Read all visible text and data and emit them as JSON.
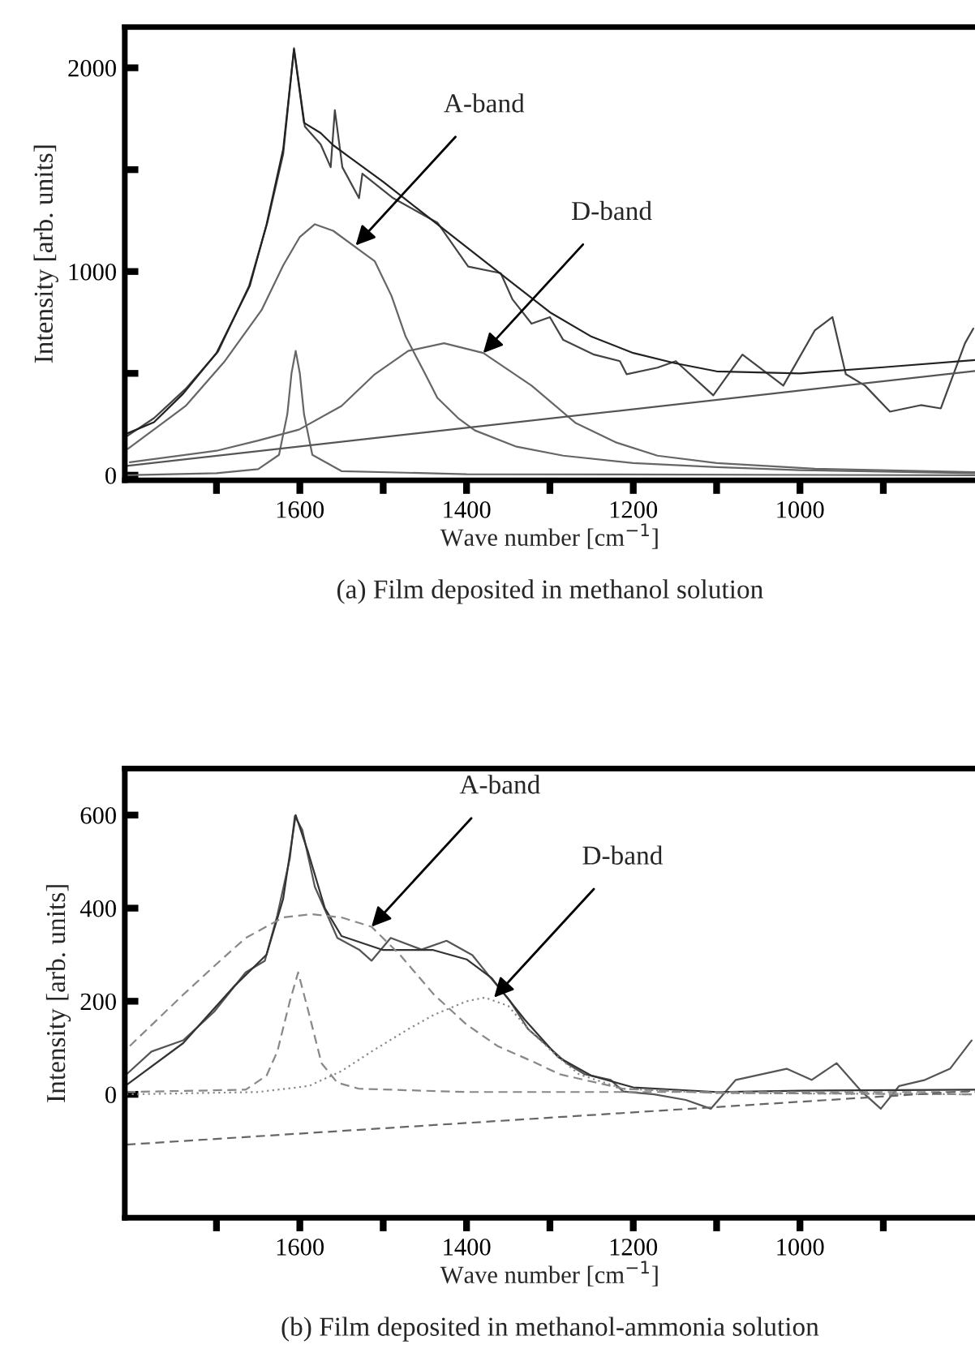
{
  "chart_data": [
    {
      "type": "line",
      "title": "(a) Film deposited in methanol solution",
      "xlabel": "Wave number [cm$^{−1}$]",
      "ylabel": "Intensity [arb. units]",
      "xlim": [
        1810,
        790
      ],
      "ylim": [
        -25,
        2200
      ],
      "xticks": [
        {
          "value": 1700,
          "label": null
        },
        1600,
        {
          "value": 1500,
          "label": null
        },
        1400,
        {
          "value": 1300,
          "label": null
        },
        1200,
        {
          "value": 1100,
          "label": null
        },
        1000,
        {
          "value": 900,
          "label": null
        }
      ],
      "yticks": [
        0,
        {
          "value": 500,
          "label": null
        },
        1000,
        {
          "value": 1500,
          "label": null
        },
        2000
      ],
      "grid": false,
      "legend": false,
      "annotations": [
        {
          "text": "A-band",
          "x": 1533,
          "y": 1128
        },
        {
          "text": "D-band",
          "x": 1380,
          "y": 600
        }
      ],
      "series": [
        {
          "color": "#444444",
          "line_style": "solid",
          "x": [
            1808,
            1775,
            1737,
            1698,
            1661,
            1639,
            1620,
            1607,
            1594,
            1575,
            1563,
            1558,
            1549,
            1529,
            1525,
            1488,
            1435,
            1398,
            1359,
            1345,
            1322,
            1300,
            1284,
            1247,
            1216,
            1208,
            1171,
            1149,
            1104,
            1069,
            1020,
            982,
            961,
            945,
            922,
            892,
            855,
            831,
            802,
            792
          ],
          "values": [
            190,
            280,
            424,
            608,
            928,
            1240,
            1576,
            2096,
            1712,
            1624,
            1512,
            1792,
            1512,
            1360,
            1480,
            1360,
            1240,
            1024,
            992,
            864,
            744,
            776,
            664,
            592,
            560,
            496,
            528,
            560,
            392,
            592,
            440,
            712,
            776,
            496,
            440,
            312,
            344,
            328,
            648,
            720
          ]
        },
        {
          "color": "#222222",
          "line_style": "solid",
          "x": [
            1810,
            1775,
            1740,
            1700,
            1660,
            1640,
            1620,
            1607,
            1595,
            1575,
            1560,
            1540,
            1500,
            1450,
            1400,
            1350,
            1300,
            1250,
            1200,
            1150,
            1100,
            1000,
            900,
            790
          ],
          "values": [
            200,
            260,
            400,
            600,
            930,
            1230,
            1600,
            2090,
            1730,
            1680,
            1620,
            1560,
            1440,
            1280,
            1120,
            960,
            800,
            680,
            600,
            550,
            510,
            500,
            530,
            565
          ]
        },
        {
          "color": "#666666",
          "line_style": "solid",
          "x": [
            1806,
            1737,
            1690,
            1646,
            1620,
            1600,
            1582,
            1560,
            1530,
            1510,
            1490,
            1473,
            1450,
            1435,
            1410,
            1390,
            1340,
            1284,
            1200,
            1100,
            1000,
            790
          ],
          "values": [
            130,
            340,
            560,
            810,
            1030,
            1170,
            1232,
            1200,
            1110,
            1050,
            880,
            680,
            500,
            380,
            280,
            220,
            140,
            96,
            60,
            40,
            25,
            10
          ]
        },
        {
          "color": "#666666",
          "line_style": "solid",
          "x": [
            1804,
            1700,
            1650,
            1601,
            1550,
            1510,
            1470,
            1427,
            1380,
            1322,
            1269,
            1220,
            1171,
            1100,
            982,
            790
          ],
          "values": [
            64,
            120,
            170,
            224,
            340,
            496,
            610,
            648,
            600,
            440,
            256,
            160,
            96,
            60,
            32,
            15
          ]
        },
        {
          "color": "#666666",
          "line_style": "solid",
          "x": [
            1810,
            1700,
            1650,
            1625,
            1615,
            1610,
            1605,
            1600,
            1595,
            1585,
            1550,
            1400,
            790
          ],
          "values": [
            0,
            10,
            30,
            100,
            300,
            500,
            610,
            500,
            300,
            100,
            20,
            5,
            0
          ]
        },
        {
          "color": "#555555",
          "line_style": "solid",
          "x": [
            1810,
            790
          ],
          "values": [
            45,
            512
          ]
        }
      ]
    },
    {
      "type": "line",
      "title": "(b) Film deposited in methanol-ammonia solution",
      "xlabel": "Wave number [cm$^{−1}$]",
      "ylabel": "Intensity [arb. units]",
      "xlim": [
        1810,
        790
      ],
      "ylim": [
        -265,
        700
      ],
      "xticks": [
        {
          "value": 1700,
          "label": null
        },
        1600,
        {
          "value": 1500,
          "label": null
        },
        1400,
        {
          "value": 1300,
          "label": null
        },
        1200,
        {
          "value": 1100,
          "label": null
        },
        1000,
        {
          "value": 900,
          "label": null
        }
      ],
      "yticks": [
        0,
        200,
        400,
        600
      ],
      "grid": false,
      "legend": false,
      "annotations": [
        {
          "text": "A-band",
          "x": 1514,
          "y": 360
        },
        {
          "text": "D-band",
          "x": 1367,
          "y": 208
        }
      ],
      "series": [
        {
          "color": "#555555",
          "line_style": "solid",
          "x": [
            1808,
            1778,
            1740,
            1703,
            1665,
            1642,
            1627,
            1612,
            1606,
            1597,
            1582,
            1567,
            1555,
            1529,
            1514,
            1491,
            1454,
            1424,
            1393,
            1371,
            1348,
            1326,
            1303,
            1280,
            1258,
            1227,
            1212,
            1175,
            1137,
            1107,
            1077,
            1046,
            1016,
            986,
            956,
            926,
            903,
            881,
            850,
            820,
            794
          ],
          "values": [
            43,
            92,
            116,
            177,
            262,
            287,
            385,
            507,
            598,
            568,
            446,
            385,
            336,
            311,
            287,
            336,
            311,
            330,
            299,
            250,
            201,
            140,
            104,
            67,
            43,
            31,
            6,
            0,
            -12,
            -31,
            31,
            43,
            55,
            31,
            67,
            6,
            -31,
            18,
            31,
            55,
            116
          ]
        },
        {
          "color": "#333333",
          "line_style": "solid",
          "x": [
            1808,
            1740,
            1680,
            1640,
            1620,
            1605,
            1590,
            1570,
            1550,
            1500,
            1440,
            1400,
            1370,
            1330,
            1290,
            1250,
            1200,
            1100,
            1000,
            790
          ],
          "values": [
            20,
            110,
            230,
            300,
            420,
            600,
            520,
            400,
            340,
            310,
            310,
            290,
            250,
            160,
            80,
            40,
            15,
            5,
            8,
            10
          ]
        },
        {
          "color": "#888888",
          "line_style": "dashed",
          "x": [
            1804,
            1740,
            1700,
            1665,
            1620,
            1586,
            1550,
            1514,
            1480,
            1439,
            1400,
            1363,
            1320,
            1288,
            1212,
            1100,
            790
          ],
          "values": [
            104,
            214,
            280,
            336,
            380,
            387,
            380,
            360,
            300,
            214,
            150,
            104,
            70,
            43,
            12,
            3,
            0
          ]
        },
        {
          "color": "#888888",
          "line_style": "dotted",
          "x": [
            1808,
            1650,
            1589,
            1550,
            1514,
            1470,
            1439,
            1400,
            1378,
            1350,
            1326,
            1290,
            1265,
            1212,
            1100,
            790
          ],
          "values": [
            0,
            5,
            18,
            50,
            92,
            140,
            171,
            200,
            208,
            190,
            140,
            80,
            43,
            12,
            3,
            0
          ]
        },
        {
          "color": "#888888",
          "line_style": "dashed",
          "x": [
            1808,
            1665,
            1640,
            1627,
            1612,
            1602,
            1590,
            1574,
            1555,
            1529,
            1400,
            790
          ],
          "values": [
            5,
            10,
            40,
            92,
            200,
            262,
            180,
            67,
            25,
            12,
            5,
            5
          ]
        },
        {
          "color": "#666666",
          "line_style": "dashed",
          "x": [
            1808,
            790
          ],
          "values": [
            -108,
            8
          ]
        }
      ]
    }
  ]
}
